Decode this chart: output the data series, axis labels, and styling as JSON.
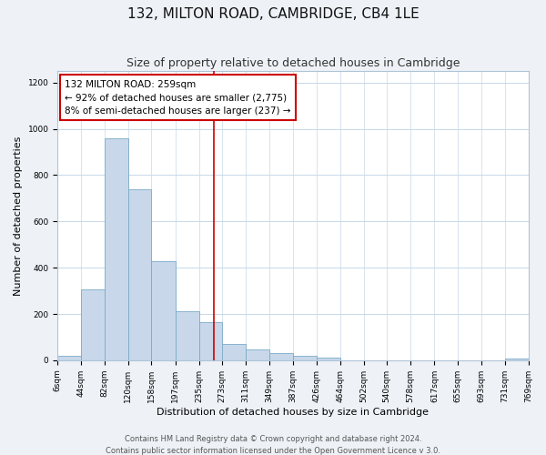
{
  "title": "132, MILTON ROAD, CAMBRIDGE, CB4 1LE",
  "subtitle": "Size of property relative to detached houses in Cambridge",
  "xlabel": "Distribution of detached houses by size in Cambridge",
  "ylabel": "Number of detached properties",
  "bar_color": "#c8d8ea",
  "bar_edge_color": "#7aaac8",
  "line_color": "#cc0000",
  "line_value": 259,
  "annotation_title": "132 MILTON ROAD: 259sqm",
  "annotation_line1": "← 92% of detached houses are smaller (2,775)",
  "annotation_line2": "8% of semi-detached houses are larger (237) →",
  "bin_edges": [
    6,
    44,
    82,
    120,
    158,
    197,
    235,
    273,
    311,
    349,
    387,
    426,
    464,
    502,
    540,
    578,
    617,
    655,
    693,
    731,
    769
  ],
  "bin_labels": [
    "6sqm",
    "44sqm",
    "82sqm",
    "120sqm",
    "158sqm",
    "197sqm",
    "235sqm",
    "273sqm",
    "311sqm",
    "349sqm",
    "387sqm",
    "426sqm",
    "464sqm",
    "502sqm",
    "540sqm",
    "578sqm",
    "617sqm",
    "655sqm",
    "693sqm",
    "731sqm",
    "769sqm"
  ],
  "counts": [
    20,
    305,
    960,
    740,
    430,
    210,
    165,
    70,
    48,
    32,
    18,
    10,
    0,
    0,
    0,
    0,
    0,
    0,
    0,
    8
  ],
  "ylim": [
    0,
    1250
  ],
  "yticks": [
    0,
    200,
    400,
    600,
    800,
    1000,
    1200
  ],
  "footer1": "Contains HM Land Registry data © Crown copyright and database right 2024.",
  "footer2": "Contains public sector information licensed under the Open Government Licence v 3.0.",
  "background_color": "#eef2f7",
  "plot_background": "#ffffff",
  "grid_color": "#c8d8e8",
  "title_fontsize": 11,
  "subtitle_fontsize": 9,
  "axis_label_fontsize": 8,
  "tick_fontsize": 6.5,
  "footer_fontsize": 6,
  "annotation_fontsize": 7.5
}
